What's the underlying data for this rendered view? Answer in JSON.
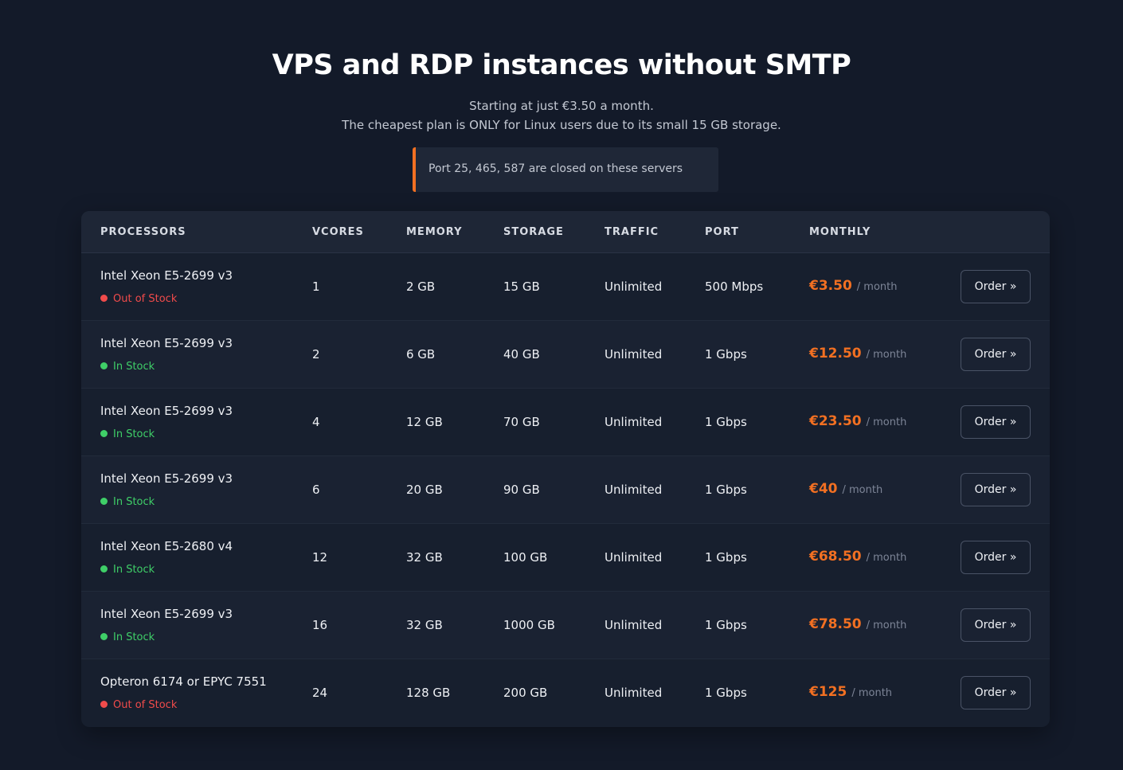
{
  "header": {
    "title": "VPS and RDP instances without SMTP",
    "subtitle_line1": "Starting at just €3.50 a month.",
    "subtitle_line2": "The cheapest plan is ONLY for Linux users due to its small 15 GB storage.",
    "notice": "Port 25, 465, 587 are closed on these servers"
  },
  "colors": {
    "accent": "#f27022",
    "in_stock": "#3fcf68",
    "out_of_stock": "#f04b4b",
    "background": "#131a29"
  },
  "table": {
    "columns": [
      "PROCESSORS",
      "VCORES",
      "MEMORY",
      "STORAGE",
      "TRAFFIC",
      "PORT",
      "MONTHLY"
    ],
    "rows": [
      {
        "processor": "Intel Xeon E5-2699 v3",
        "stock": "Out of Stock",
        "in_stock": false,
        "vcores": "1",
        "memory": "2 GB",
        "storage": "15 GB",
        "traffic": "Unlimited",
        "port": "500 Mbps",
        "price": "€3.50",
        "period": "/ month",
        "order": "Order »"
      },
      {
        "processor": "Intel Xeon E5-2699 v3",
        "stock": "In Stock",
        "in_stock": true,
        "vcores": "2",
        "memory": "6 GB",
        "storage": "40 GB",
        "traffic": "Unlimited",
        "port": "1 Gbps",
        "price": "€12.50",
        "period": "/ month",
        "order": "Order »"
      },
      {
        "processor": "Intel Xeon E5-2699 v3",
        "stock": "In Stock",
        "in_stock": true,
        "vcores": "4",
        "memory": "12 GB",
        "storage": "70 GB",
        "traffic": "Unlimited",
        "port": "1 Gbps",
        "price": "€23.50",
        "period": "/ month",
        "order": "Order »"
      },
      {
        "processor": "Intel Xeon E5-2699 v3",
        "stock": "In Stock",
        "in_stock": true,
        "vcores": "6",
        "memory": "20 GB",
        "storage": "90 GB",
        "traffic": "Unlimited",
        "port": "1 Gbps",
        "price": "€40",
        "period": "/ month",
        "order": "Order »"
      },
      {
        "processor": "Intel Xeon E5-2680 v4",
        "stock": "In Stock",
        "in_stock": true,
        "vcores": "12",
        "memory": "32 GB",
        "storage": "100 GB",
        "traffic": "Unlimited",
        "port": "1 Gbps",
        "price": "€68.50",
        "period": "/ month",
        "order": "Order »"
      },
      {
        "processor": "Intel Xeon E5-2699 v3",
        "stock": "In Stock",
        "in_stock": true,
        "vcores": "16",
        "memory": "32 GB",
        "storage": "1000 GB",
        "traffic": "Unlimited",
        "port": "1 Gbps",
        "price": "€78.50",
        "period": "/ month",
        "order": "Order »"
      },
      {
        "processor": "Opteron 6174 or EPYC 7551",
        "stock": "Out of Stock",
        "in_stock": false,
        "vcores": "24",
        "memory": "128 GB",
        "storage": "200 GB",
        "traffic": "Unlimited",
        "port": "1 Gbps",
        "price": "€125",
        "period": "/ month",
        "order": "Order »"
      }
    ]
  }
}
